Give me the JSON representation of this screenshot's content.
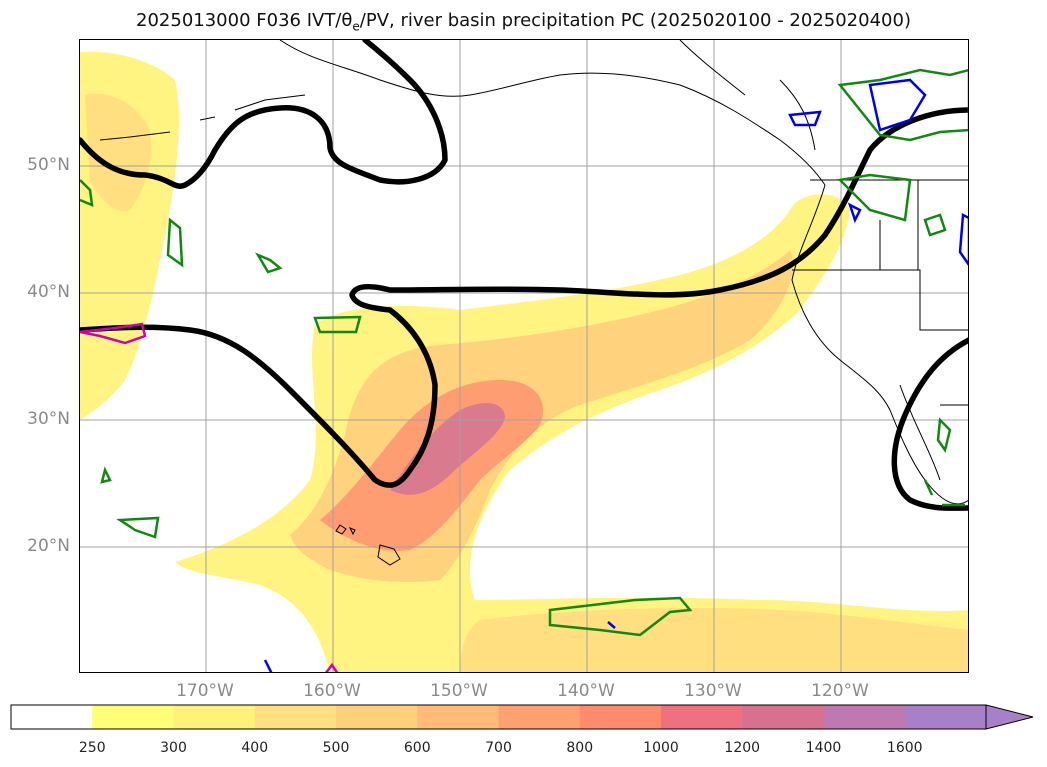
{
  "title": {
    "prefix": "2025013000 F036 IVT/θ",
    "sub": "e",
    "suffix": "/PV, river basin precipitation PC (2025020100 - 2025020400)"
  },
  "lat_labels": [
    "50°N",
    "40°N",
    "30°N",
    "20°N"
  ],
  "lon_labels": [
    "170°W",
    "160°W",
    "150°W",
    "140°W",
    "130°W",
    "120°W"
  ],
  "colorbar": {
    "levels": [
      "250",
      "300",
      "400",
      "500",
      "600",
      "700",
      "800",
      "1000",
      "1200",
      "1400",
      "1600"
    ],
    "colors": [
      "#ffffff",
      "#ffff77",
      "#fff27a",
      "#ffe080",
      "#ffd07c",
      "#ffbb77",
      "#ffa070",
      "#ff8a6c",
      "#f07080",
      "#d87090",
      "#c078b0",
      "#a880c8"
    ],
    "extend": "max"
  },
  "colors": {
    "ivt_light": "#fff27a",
    "ivt_mid": "#ffcc7a",
    "ivt_high": "#ff9078",
    "ivt_peak": "#d87890",
    "pv_contour": "#000000",
    "theta_green": "#118811",
    "theta_blue": "#0000ee",
    "theta_magenta": "#cc00bb"
  }
}
